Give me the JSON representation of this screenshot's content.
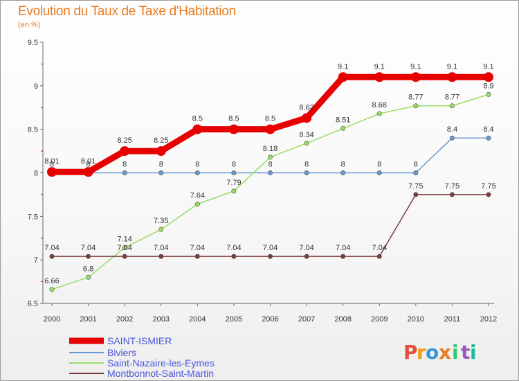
{
  "header": {
    "title": "Evolution du Taux de Taxe d'Habitation",
    "unit": "(en %)"
  },
  "logo": {
    "letters": [
      "P",
      "r",
      "o",
      "x",
      "i",
      "t",
      "i"
    ],
    "colors": [
      "#e74c3c",
      "#f39c12",
      "#3498db",
      "#e67e22",
      "#2ecc71",
      "#9b59b6",
      "#1abc9c"
    ]
  },
  "chart_data": {
    "type": "line",
    "title": "Evolution du Taux de Taxe d'Habitation",
    "ylabel": "(en %)",
    "xlabel": "",
    "ylim": [
      6.5,
      9.5
    ],
    "y_ticks": [
      "6.5",
      "7",
      "7.5",
      "8",
      "8.5",
      "9",
      "9.5"
    ],
    "categories": [
      "2000",
      "2001",
      "2002",
      "2003",
      "2004",
      "2005",
      "2006",
      "2007",
      "2008",
      "2009",
      "2010",
      "2011",
      "2012"
    ],
    "series": [
      {
        "name": "SAINT-ISMIER",
        "color": "#e60000",
        "width": "thick",
        "values": [
          8.01,
          8.01,
          8.25,
          8.25,
          8.5,
          8.5,
          8.5,
          8.63,
          9.1,
          9.1,
          9.1,
          9.1,
          9.1
        ],
        "labels": [
          "8.01",
          "8.01",
          "8.25",
          "8.25",
          "8.5",
          "8.5",
          "8.5",
          "8.63",
          "9.1",
          "9.1",
          "9.1",
          "9.1",
          "9.1"
        ]
      },
      {
        "name": "Biviers",
        "color": "#6699cc",
        "width": "thin",
        "values": [
          8,
          8,
          8,
          8,
          8,
          8,
          8,
          8,
          8,
          8,
          8,
          8.4,
          8.4
        ],
        "labels": [
          "8",
          "8",
          "8",
          "8",
          "8",
          "8",
          "8",
          "8",
          "8",
          "8",
          "8",
          "8.4",
          "8.4"
        ]
      },
      {
        "name": "Saint-Nazaire-les-Eymes",
        "color": "#99dd66",
        "width": "thin",
        "values": [
          6.66,
          6.8,
          7.14,
          7.35,
          7.64,
          7.79,
          8.18,
          8.34,
          8.51,
          8.68,
          8.77,
          8.77,
          8.9
        ],
        "labels": [
          "6.66",
          "6.8",
          "7.14",
          "7.35",
          "7.64",
          "7.79",
          "8.18",
          "8.34",
          "8.51",
          "8.68",
          "8.77",
          "8.77",
          "8.9"
        ]
      },
      {
        "name": "Montbonnot-Saint-Martin",
        "color": "#7a3b3b",
        "width": "thin",
        "values": [
          7.04,
          7.04,
          7.04,
          7.04,
          7.04,
          7.04,
          7.04,
          7.04,
          7.04,
          7.04,
          7.75,
          7.75,
          7.75
        ],
        "labels": [
          "7.04",
          "7.04",
          "7.04",
          "7.04",
          "7.04",
          "7.04",
          "7.04",
          "7.04",
          "7.04",
          "7.04",
          "7.75",
          "7.75",
          "7.75"
        ]
      }
    ],
    "legend": [
      "SAINT-ISMIER",
      "Biviers",
      "Saint-Nazaire-les-Eymes",
      "Montbonnot-Saint-Martin"
    ]
  }
}
